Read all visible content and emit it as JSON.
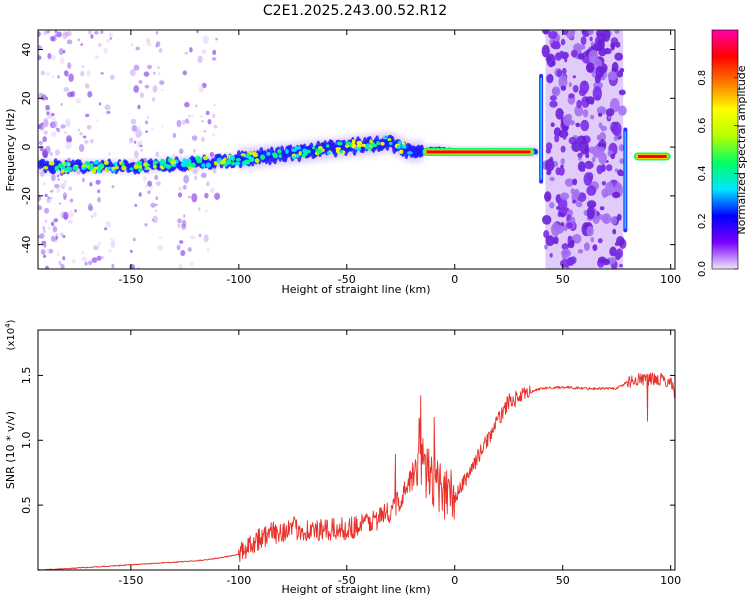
{
  "title": "C2E1.2025.243.00.52.R12",
  "colors": {
    "snr_line": "#e8312a",
    "axis": "#000000",
    "colormap": [
      "#f0e6fa",
      "#7b00ff",
      "#0000ff",
      "#00e5ff",
      "#00ff66",
      "#b6ff00",
      "#ffff00",
      "#ff7a00",
      "#ff0000",
      "#ff00aa"
    ]
  },
  "chart_data": [
    {
      "type": "heatmap",
      "xlabel": "Height of straight line (km)",
      "ylabel": "Frequency (Hz)",
      "xlim": [
        -193,
        102
      ],
      "ylim": [
        -50,
        48
      ],
      "x_ticks": [
        -150,
        -100,
        -50,
        0,
        50,
        100
      ],
      "y_ticks": [
        -40,
        -20,
        0,
        20,
        40
      ],
      "colorbar": {
        "label": "Normalized spectral amplitude",
        "range": [
          0.0,
          1.0
        ],
        "ticks": [
          "0.0",
          "0.2",
          "0.4",
          "0.6",
          "0.8"
        ]
      },
      "ridge": {
        "x": [
          -190,
          -170,
          -150,
          -130,
          -110,
          -100,
          -80,
          -60,
          -50,
          -40,
          -30,
          -20,
          -10,
          0,
          10,
          20,
          38,
          80,
          85,
          90,
          100
        ],
        "frequency": [
          -8,
          -8,
          -8,
          -7,
          -6,
          -5,
          -3,
          -1,
          0,
          1,
          2,
          -2,
          -1,
          -2,
          -2,
          -2,
          -2,
          -4,
          -4,
          -4,
          -3
        ]
      },
      "noisy_regions": [
        {
          "x_range": [
            -193,
            -178
          ]
        },
        {
          "x_range": [
            -178,
            -158
          ]
        },
        {
          "x_range": [
            -150,
            -135
          ]
        },
        {
          "x_range": [
            -130,
            -110
          ]
        },
        {
          "x_range": [
            42,
            78
          ]
        }
      ]
    },
    {
      "type": "line",
      "xlabel": "Height of straight line (km)",
      "ylabel": "SNR (10 * v/v)",
      "y_multiplier": "(x10",
      "y_multiplier_exp": "4",
      "unit_scale": 10000,
      "xlim": [
        -193,
        102
      ],
      "ylim": [
        0,
        1.85
      ],
      "x_ticks": [
        -150,
        -100,
        -50,
        0,
        50,
        100
      ],
      "y_ticks": [
        0.5,
        1.0,
        1.5
      ],
      "series": [
        {
          "x": [
            -193,
            -180,
            -170,
            -160,
            -150,
            -140,
            -130,
            -120,
            -110,
            -100,
            -95,
            -90,
            -85,
            -80,
            -75,
            -70,
            -65,
            -60,
            -55,
            -50,
            -45,
            -40,
            -35,
            -30,
            -25,
            -20,
            -15,
            -12,
            -10,
            -5,
            0,
            5,
            10,
            15,
            20,
            25,
            30,
            35,
            40,
            50,
            60,
            70,
            75,
            80,
            85,
            90,
            95,
            100,
            102
          ],
          "y": [
            0.0,
            0.01,
            0.02,
            0.03,
            0.04,
            0.05,
            0.06,
            0.07,
            0.09,
            0.12,
            0.2,
            0.25,
            0.28,
            0.3,
            0.32,
            0.31,
            0.3,
            0.3,
            0.31,
            0.32,
            0.34,
            0.37,
            0.4,
            0.45,
            0.55,
            0.7,
            0.8,
            0.75,
            0.7,
            0.6,
            0.55,
            0.7,
            0.85,
            1.0,
            1.15,
            1.3,
            1.33,
            1.37,
            1.4,
            1.41,
            1.4,
            1.4,
            1.4,
            1.45,
            1.47,
            1.47,
            1.47,
            1.45,
            1.35
          ]
        }
      ]
    }
  ]
}
